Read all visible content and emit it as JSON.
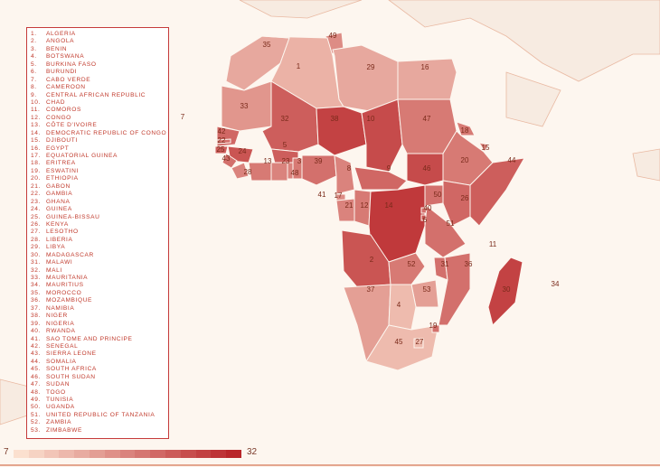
{
  "legend": {
    "items": [
      "Algeria",
      "Angola",
      "Benin",
      "Botswana",
      "Burkina Faso",
      "Burundi",
      "Cabo Verde",
      "Cameroon",
      "Central African Republic",
      "Chad",
      "Comoros",
      "Congo",
      "Côte d'Ivoire",
      "Democratic Republic of Congo",
      "Djibouti",
      "Egypt",
      "Equatorial Guinea",
      "Eritrea",
      "Eswatini",
      "Ethiopia",
      "Gabon",
      "Gambia",
      "Ghana",
      "Guinea",
      "Guinea-Bissau",
      "Kenya",
      "Lesotho",
      "Liberia",
      "Libya",
      "Madagascar",
      "Malawi",
      "Mali",
      "Mauritania",
      "Mauritius",
      "Morocco",
      "Mozambique",
      "Namibia",
      "Niger",
      "Nigeria",
      "Rwanda",
      "Sao Tome and Principe",
      "Senegal",
      "Sierra Leone",
      "Somalia",
      "South Africa",
      "South Sudan",
      "Sudan",
      "Togo",
      "Tunisia",
      "Uganda",
      "United Republic of Tanzania",
      "Zambia",
      "Zimbabwe"
    ]
  },
  "scale": {
    "min": "7",
    "max": "32",
    "min_color": "#fbe0cf",
    "max_color": "#b9262a",
    "steps": 15
  },
  "colors": {
    "background": "#fdf6ef",
    "border_land": "#f6e6da",
    "outline": "#e08060"
  },
  "regions": [
    {
      "num": "35",
      "level": 0.3
    },
    {
      "num": "49",
      "level": 0.45
    },
    {
      "num": "1",
      "level": 0.25
    },
    {
      "num": "29",
      "level": 0.3
    },
    {
      "num": "16",
      "level": 0.3
    },
    {
      "num": "33",
      "level": 0.4
    },
    {
      "num": "32",
      "level": 0.7
    },
    {
      "num": "38",
      "level": 0.85
    },
    {
      "num": "10",
      "level": 0.8
    },
    {
      "num": "47",
      "level": 0.55
    },
    {
      "num": "18",
      "level": 0.55
    },
    {
      "num": "15",
      "level": 0.5
    },
    {
      "num": "20",
      "level": 0.55
    },
    {
      "num": "44",
      "level": 0.7
    },
    {
      "num": "42",
      "level": 0.65
    },
    {
      "num": "22",
      "level": 0.6
    },
    {
      "num": "24",
      "level": 0.75
    },
    {
      "num": "25",
      "level": 0.7
    },
    {
      "num": "43",
      "level": 0.6
    },
    {
      "num": "13",
      "level": 0.55
    },
    {
      "num": "23",
      "level": 0.5
    },
    {
      "num": "3",
      "level": 0.55
    },
    {
      "num": "39",
      "level": 0.6
    },
    {
      "num": "28",
      "level": 0.5
    },
    {
      "num": "48",
      "level": 0.5
    },
    {
      "num": "8",
      "level": 0.5
    },
    {
      "num": "9",
      "level": 0.65
    },
    {
      "num": "46",
      "level": 0.8
    },
    {
      "num": "41",
      "level": 0.0
    },
    {
      "num": "17",
      "level": 0.45
    },
    {
      "num": "21",
      "level": 0.5
    },
    {
      "num": "12",
      "level": 0.55
    },
    {
      "num": "14",
      "level": 0.9
    },
    {
      "num": "50",
      "level": 0.6
    },
    {
      "num": "40",
      "level": 0.6
    },
    {
      "num": "6",
      "level": 0.75
    },
    {
      "num": "26",
      "level": 0.65
    },
    {
      "num": "51",
      "level": 0.6
    },
    {
      "num": "11",
      "level": 0.0
    },
    {
      "num": "2",
      "level": 0.75
    },
    {
      "num": "52",
      "level": 0.55
    },
    {
      "num": "31",
      "level": 0.6
    },
    {
      "num": "36",
      "level": 0.6
    },
    {
      "num": "30",
      "level": 0.85
    },
    {
      "num": "34",
      "level": 0.0
    },
    {
      "num": "37",
      "level": 0.35
    },
    {
      "num": "53",
      "level": 0.35
    },
    {
      "num": "4",
      "level": 0.2
    },
    {
      "num": "19",
      "level": 0.6
    },
    {
      "num": "45",
      "level": 0.2
    },
    {
      "num": "27",
      "level": 0.2
    },
    {
      "num": "7",
      "level": 0.0
    },
    {
      "num": "5",
      "level": 0.7
    }
  ]
}
